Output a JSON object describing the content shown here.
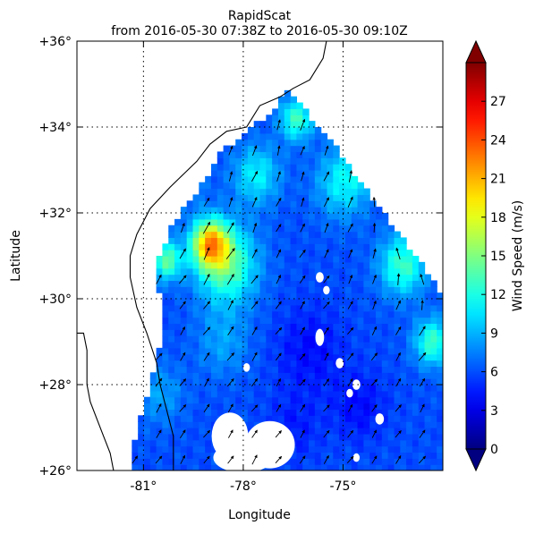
{
  "chart_data": {
    "type": "heatmap",
    "title": "RapidScat",
    "subtitle": "from 2016-05-30 07:38Z to 2016-05-30 09:10Z",
    "xlabel": "Longitude",
    "ylabel": "Latitude",
    "xlim": [
      -83.0,
      -72.0
    ],
    "ylim": [
      26.0,
      36.0
    ],
    "xticks": [
      -81,
      -78,
      -75
    ],
    "xtick_labels": [
      "-81°",
      "-78°",
      "-75°"
    ],
    "yticks": [
      26,
      28,
      30,
      32,
      34,
      36
    ],
    "ytick_labels": [
      "+26°",
      "+28°",
      "+30°",
      "+32°",
      "+34°",
      "+36°"
    ],
    "grid": true,
    "colorbar": {
      "label": "Wind Speed (m/s)",
      "range": [
        0,
        30
      ],
      "ticks": [
        0,
        3,
        6,
        9,
        12,
        15,
        18,
        21,
        24,
        27
      ],
      "tick_labels": [
        "0",
        "3",
        "6",
        "9",
        "12",
        "15",
        "18",
        "21",
        "24",
        "27"
      ],
      "extend": "both",
      "colormap": "jet"
    },
    "swath_outline": [
      [
        -83.0,
        26.0
      ],
      [
        -81.4,
        26.0
      ],
      [
        -81.3,
        26.6
      ],
      [
        -81.0,
        27.5
      ],
      [
        -80.6,
        28.5
      ],
      [
        -80.4,
        29.5
      ],
      [
        -80.6,
        30.5
      ],
      [
        -80.5,
        31.1
      ],
      [
        -80.0,
        31.9
      ],
      [
        -79.5,
        32.4
      ],
      [
        -79.2,
        32.7
      ],
      [
        -78.7,
        33.4
      ],
      [
        -78.0,
        33.8
      ],
      [
        -77.1,
        34.4
      ],
      [
        -76.7,
        34.9
      ],
      [
        -75.3,
        33.6
      ],
      [
        -74.1,
        32.3
      ],
      [
        -73.1,
        31.3
      ],
      [
        -72.0,
        30.1
      ],
      [
        -72.0,
        26.0
      ]
    ],
    "coastline": [
      [
        -83.0,
        29.2
      ],
      [
        -82.8,
        29.2
      ],
      [
        -82.7,
        28.8
      ],
      [
        -82.7,
        28.0
      ],
      [
        -82.6,
        27.6
      ],
      [
        -82.4,
        27.2
      ],
      [
        -82.2,
        26.8
      ],
      [
        -82.0,
        26.4
      ],
      [
        -81.9,
        26.0
      ],
      [
        -80.1,
        26.0
      ],
      [
        -80.1,
        26.8
      ],
      [
        -80.3,
        27.4
      ],
      [
        -80.5,
        28.0
      ],
      [
        -80.6,
        28.5
      ],
      [
        -80.9,
        29.2
      ],
      [
        -81.2,
        29.8
      ],
      [
        -81.4,
        30.5
      ],
      [
        -81.4,
        31.0
      ],
      [
        -81.2,
        31.5
      ],
      [
        -80.8,
        32.1
      ],
      [
        -80.2,
        32.6
      ],
      [
        -79.4,
        33.2
      ],
      [
        -79.0,
        33.6
      ],
      [
        -78.5,
        33.9
      ],
      [
        -77.9,
        34.0
      ],
      [
        -77.5,
        34.5
      ],
      [
        -76.9,
        34.7
      ],
      [
        -76.5,
        34.9
      ],
      [
        -76.0,
        35.1
      ],
      [
        -75.6,
        35.6
      ],
      [
        -75.5,
        36.0
      ]
    ],
    "speed_field": {
      "background": 6.0,
      "anomalies": [
        {
          "lon": -79.0,
          "lat": 31.3,
          "speed": 19.0,
          "spread": 0.55
        },
        {
          "lon": -78.5,
          "lat": 30.8,
          "speed": 14.0,
          "spread": 0.9
        },
        {
          "lon": -80.3,
          "lat": 30.9,
          "speed": 14.0,
          "spread": 0.45
        },
        {
          "lon": -73.2,
          "lat": 30.8,
          "speed": 13.0,
          "spread": 0.7
        },
        {
          "lon": -72.3,
          "lat": 29.0,
          "speed": 13.0,
          "spread": 0.55
        },
        {
          "lon": -76.4,
          "lat": 34.2,
          "speed": 13.0,
          "spread": 0.5
        },
        {
          "lon": -75.0,
          "lat": 32.7,
          "speed": 11.0,
          "spread": 0.8
        },
        {
          "lon": -77.6,
          "lat": 32.9,
          "speed": 11.0,
          "spread": 0.7
        },
        {
          "lon": -74.2,
          "lat": 33.5,
          "speed": 10.0,
          "spread": 0.7
        },
        {
          "lon": -80.0,
          "lat": 33.0,
          "speed": 9.0,
          "spread": 0.8
        },
        {
          "lon": -78.6,
          "lat": 29.0,
          "speed": 8.5,
          "spread": 0.8
        },
        {
          "lon": -77.8,
          "lat": 26.3,
          "speed": 9.0,
          "spread": 0.4
        },
        {
          "lon": -80.5,
          "lat": 27.8,
          "speed": 8.5,
          "spread": 0.7
        },
        {
          "lon": -76.0,
          "lat": 28.8,
          "speed": 4.0,
          "spread": 1.0
        },
        {
          "lon": -74.5,
          "lat": 27.5,
          "speed": 4.0,
          "spread": 0.8
        },
        {
          "lon": -76.5,
          "lat": 27.0,
          "speed": 4.5,
          "spread": 0.8
        }
      ]
    },
    "missing_patches": [
      {
        "lon": -78.4,
        "lat": 26.8,
        "rlon": 0.55,
        "rlat": 0.55
      },
      {
        "lon": -77.2,
        "lat": 26.6,
        "rlon": 0.75,
        "rlat": 0.55
      },
      {
        "lon": -78.0,
        "lat": 26.3,
        "rlon": 0.9,
        "rlat": 0.35
      },
      {
        "lon": -75.7,
        "lat": 30.5,
        "rlon": 0.12,
        "rlat": 0.12
      },
      {
        "lon": -75.5,
        "lat": 30.2,
        "rlon": 0.1,
        "rlat": 0.1
      },
      {
        "lon": -75.7,
        "lat": 29.1,
        "rlon": 0.13,
        "rlat": 0.2
      },
      {
        "lon": -75.1,
        "lat": 28.5,
        "rlon": 0.12,
        "rlat": 0.12
      },
      {
        "lon": -74.6,
        "lat": 28.0,
        "rlon": 0.12,
        "rlat": 0.12
      },
      {
        "lon": -74.8,
        "lat": 27.8,
        "rlon": 0.1,
        "rlat": 0.1
      },
      {
        "lon": -73.9,
        "lat": 27.2,
        "rlon": 0.13,
        "rlat": 0.13
      },
      {
        "lon": -77.9,
        "lat": 28.4,
        "rlon": 0.1,
        "rlat": 0.1
      },
      {
        "lon": -74.6,
        "lat": 26.3,
        "rlon": 0.1,
        "rlat": 0.1
      }
    ],
    "wind_vectors": {
      "lon_step": 0.72,
      "lat_step": 0.6,
      "south_dir_deg": 55,
      "north_dir_deg": 75,
      "east_dir_deg": 120
    }
  }
}
